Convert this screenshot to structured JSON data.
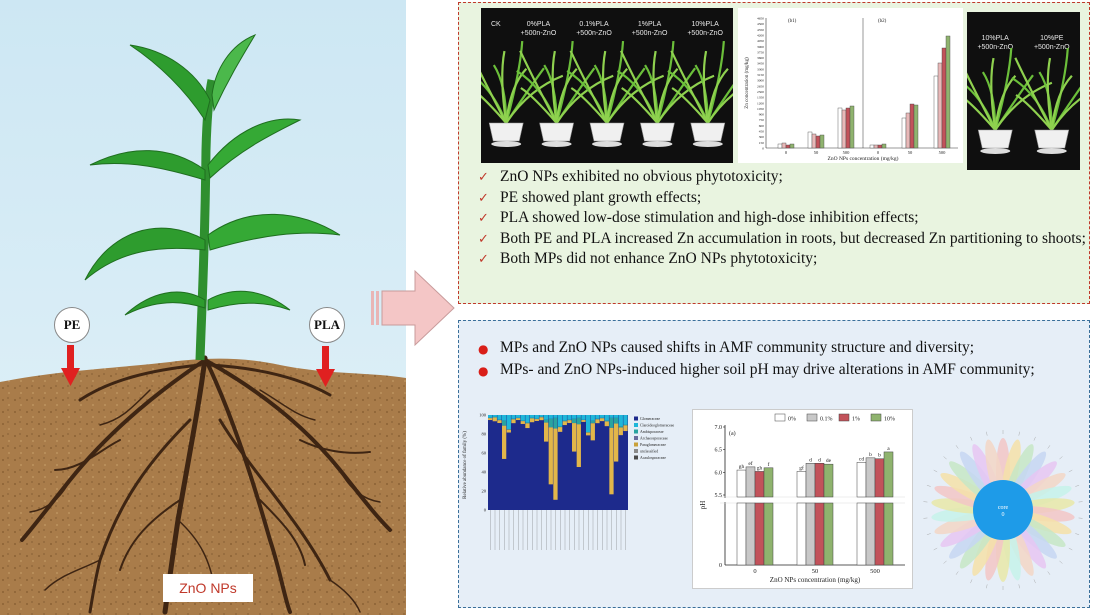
{
  "left_panel": {
    "badge_pe": "PE",
    "badge_pla": "PLA",
    "zno_label": "ZnO NPs"
  },
  "top_panel": {
    "photo1": {
      "labels": [
        "CK",
        "0%PLA\n+500n-ZnO",
        "0.1%PLA\n+500n-ZnO",
        "1%PLA\n+500n-ZnO",
        "10%PLA\n+500n-ZnO"
      ]
    },
    "zn_chart": {
      "panel_labels": [
        "(b1)",
        "(b2)"
      ],
      "ylabel": "Zn concentration (mg/kg)",
      "xlabel": "ZnO NPs concentration (mg/kg)",
      "x_ticks": [
        "0",
        "50",
        "500"
      ],
      "y_ticks": [
        "0",
        "150",
        "300",
        "450",
        "600",
        "750",
        "900",
        "1050",
        "1200",
        "1350",
        "2500",
        "2650",
        "3000",
        "3150",
        "3300",
        "3450",
        "3600",
        "3750",
        "3900",
        "4050",
        "4200",
        "4350",
        "4500",
        "4650"
      ]
    },
    "photo2": {
      "labels": [
        "10%PLA\n+500n-ZnO",
        "10%PE\n+500n-ZnO"
      ]
    },
    "findings": [
      "ZnO NPs exhibited no obvious phytotoxicity;",
      "PE showed plant growth effects;",
      "PLA showed low-dose stimulation and high-dose inhibition effects;",
      "Both PE and PLA increased Zn accumulation in roots, but decreased Zn partitioning to shoots;",
      "Both MPs did not enhance ZnO NPs phytotoxicity;"
    ]
  },
  "bottom_panel": {
    "findings": [
      "MPs and ZnO NPs caused shifts in AMF community structure and diversity;",
      "MPs- and ZnO NPs-induced higher soil pH may drive alterations in AMF community;"
    ],
    "family_chart": {
      "ylabel": "Relative abundance of family (%)",
      "y_ticks": [
        "0",
        "20",
        "40",
        "60",
        "80",
        "100"
      ],
      "legend": [
        "Glomeraceae",
        "Claroideoglomeraceae",
        "Ambisporaceae",
        "Archaeosporaceae",
        "Paraglomeraceae",
        "unclassified",
        "Acaulosporaceae"
      ],
      "legend_colors": [
        "#1d2a8c",
        "#1fb6d9",
        "#2aa3a0",
        "#6b6b9c",
        "#c9a13a",
        "#8a8a8a",
        "#4a4a4a"
      ]
    },
    "ph_chart": {
      "panel_label": "(a)",
      "ylabel": "pH",
      "xlabel": "ZnO NPs concentration (mg/kg)",
      "y_ticks": [
        "5.5",
        "6.0",
        "6.5",
        "7.0"
      ],
      "y_bottom": "0",
      "legend": [
        "0%",
        "0.1%",
        "1%",
        "10%"
      ],
      "colors": [
        "#ffffff",
        "#c8c8c8",
        "#c2525a",
        "#8fb36e"
      ],
      "groups": [
        "0",
        "50",
        "500"
      ],
      "values": [
        [
          6.05,
          6.12,
          6.02,
          6.1
        ],
        [
          6.02,
          6.2,
          6.2,
          6.18
        ],
        [
          6.22,
          6.32,
          6.3,
          6.45
        ]
      ],
      "letters": [
        [
          "gh",
          "ef",
          "gh",
          "f"
        ],
        [
          "gf",
          "d",
          "d",
          "de"
        ],
        [
          "cd",
          "b",
          "b",
          "a"
        ]
      ]
    },
    "flower": {
      "center_line1": "core",
      "center_line2": "0"
    }
  }
}
